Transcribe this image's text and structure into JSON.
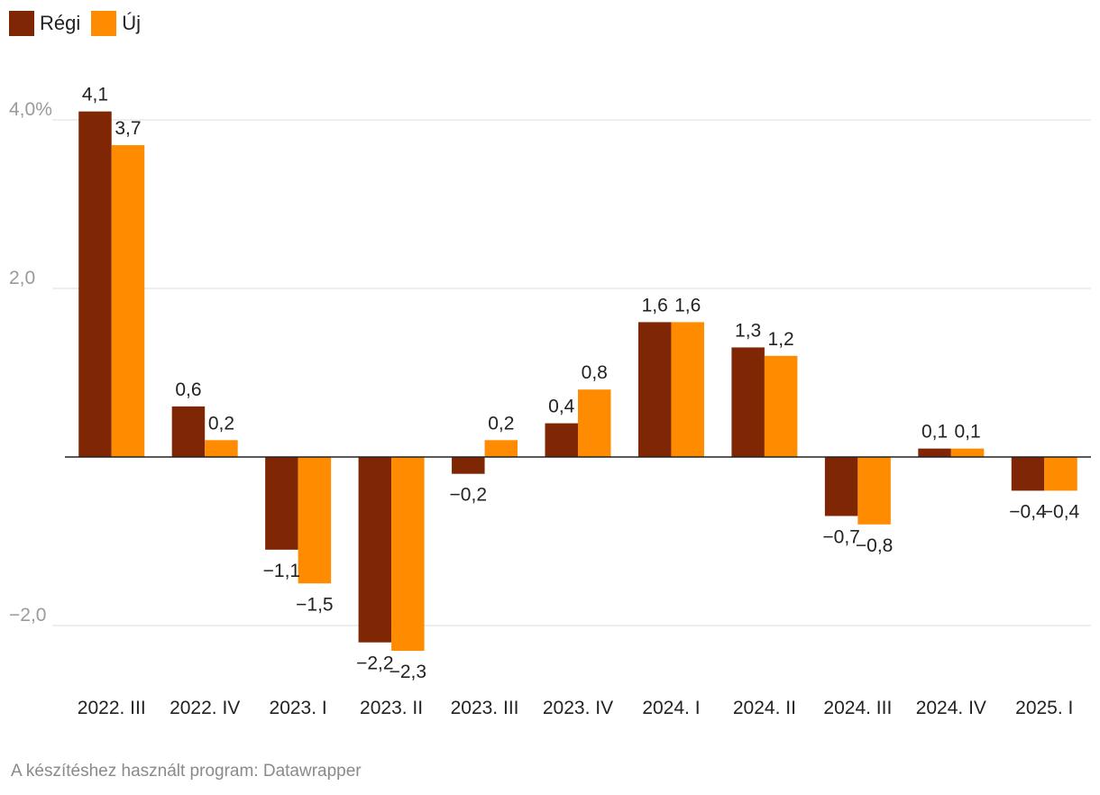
{
  "chart_data": {
    "type": "bar",
    "title": "",
    "xlabel": "",
    "ylabel": "",
    "ylim": [
      -2.8,
      4.6
    ],
    "y_ticks": [
      {
        "value": 4.0,
        "label": "4,0%"
      },
      {
        "value": 2.0,
        "label": "2,0"
      },
      {
        "value": -2.0,
        "label": "−2,0"
      }
    ],
    "categories": [
      "2022. III",
      "2022. IV",
      "2023. I",
      "2023. II",
      "2023. III",
      "2023. IV",
      "2024. I",
      "2024. II",
      "2024. III",
      "2024. IV",
      "2025. I"
    ],
    "series": [
      {
        "name": "Régi",
        "color": "#7f2704",
        "values": [
          4.1,
          0.6,
          -1.1,
          -2.2,
          -0.2,
          0.4,
          1.6,
          1.3,
          -0.7,
          0.1,
          -0.4
        ],
        "labels": [
          "4,1",
          "0,6",
          "−1,1",
          "−2,2",
          "−0,2",
          "0,4",
          "1,6",
          "1,3",
          "−0,7",
          "0,1",
          "−0,4"
        ]
      },
      {
        "name": "Új",
        "color": "#ff8c00",
        "values": [
          3.7,
          0.2,
          -1.5,
          -2.3,
          0.2,
          0.8,
          1.6,
          1.2,
          -0.8,
          0.1,
          -0.4
        ],
        "labels": [
          "3,7",
          "0,2",
          "−1,5",
          "−2,3",
          "0,2",
          "0,8",
          "1,6",
          "1,2",
          "−0,8",
          "0,1",
          "−0,4"
        ]
      }
    ],
    "legend_position": "top-left",
    "grid": true
  },
  "footer": {
    "source": "A készítéshez használt program: Datawrapper"
  }
}
